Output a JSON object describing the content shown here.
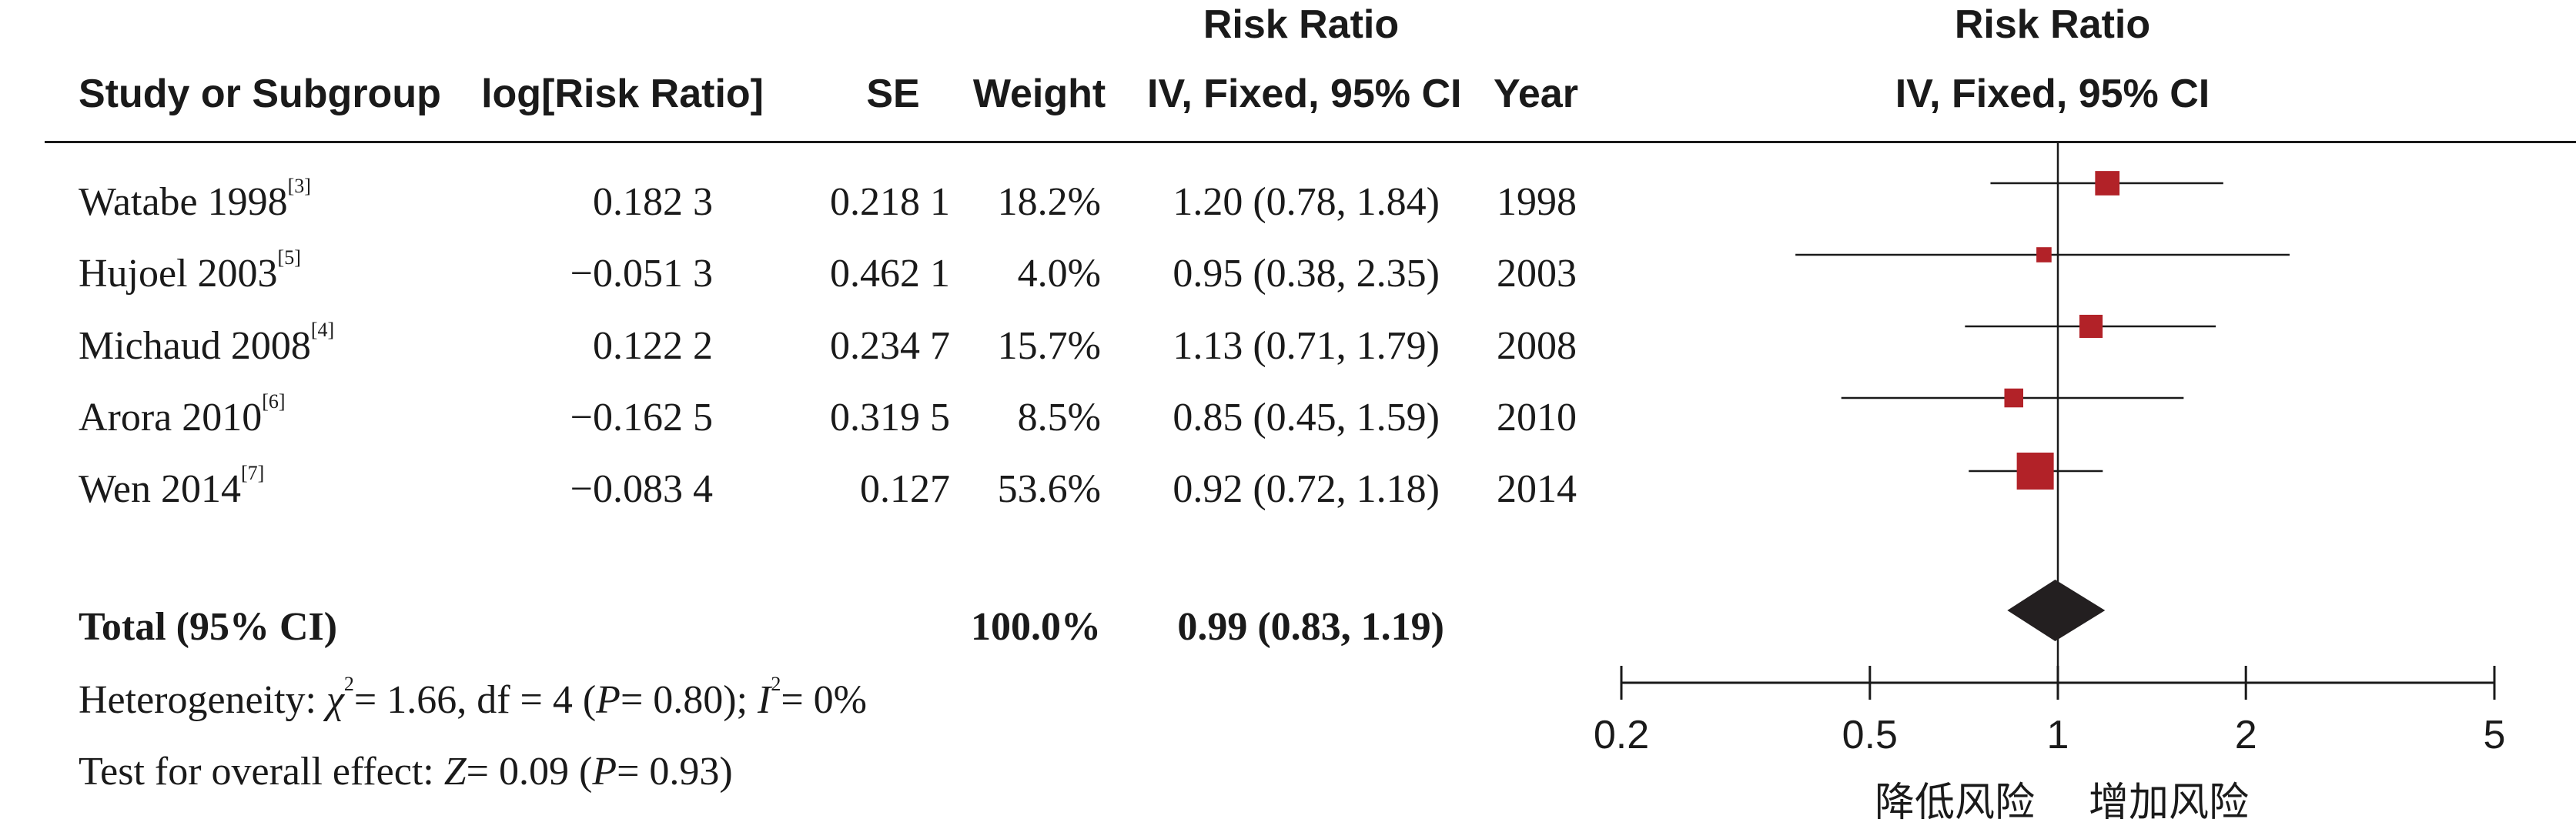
{
  "headers": {
    "study": "Study or Subgroup",
    "log_rr": "log[Risk Ratio]",
    "se": "SE",
    "weight": "Weight",
    "rr_title": "Risk Ratio",
    "rr_method": "IV, Fixed, 95% CI",
    "year": "Year",
    "plot_title": "Risk Ratio",
    "plot_method": "IV, Fixed, 95% CI"
  },
  "studies": [
    {
      "name": "Watabe 1998",
      "ref": "[3]",
      "log_rr": "0.182 3",
      "se": "0.218 1",
      "weight": "18.2%",
      "ci_text": "1.20 (0.78, 1.84)",
      "year": "1998"
    },
    {
      "name": "Hujoel 2003",
      "ref": "[5]",
      "log_rr": "−0.051 3",
      "se": "0.462 1",
      "weight": "4.0%",
      "ci_text": "0.95 (0.38, 2.35)",
      "year": "2003"
    },
    {
      "name": "Michaud 2008",
      "ref": "[4]",
      "log_rr": "0.122 2",
      "se": "0.234 7",
      "weight": "15.7%",
      "ci_text": "1.13 (0.71, 1.79)",
      "year": "2008"
    },
    {
      "name": "Arora 2010",
      "ref": "[6]",
      "log_rr": "−0.162 5",
      "se": "0.319 5",
      "weight": "8.5%",
      "ci_text": "0.85 (0.45, 1.59)",
      "year": "2010"
    },
    {
      "name": "Wen 2014",
      "ref": "[7]",
      "log_rr": "−0.083 4",
      "se": "0.127",
      "weight": "53.6%",
      "ci_text": "0.92 (0.72, 1.18)",
      "year": "2014"
    }
  ],
  "total": {
    "label": "Total (95% CI)",
    "weight": "100.0%",
    "ci_text": "0.99 (0.83, 1.19)"
  },
  "heterogeneity": {
    "prefix": "Heterogeneity: ",
    "chi_symbol": "χ",
    "chi_rest": "= 1.66, df = 4 (",
    "p_symbol": "P",
    "p_rest": "= 0.80); ",
    "i_symbol": "I",
    "i_rest": "= 0%"
  },
  "overall_effect": {
    "prefix": "Test for overall effect: ",
    "z_symbol": "Z",
    "z_rest": "= 0.09 (",
    "p_symbol": "P",
    "p_rest": "= 0.93)"
  },
  "chart_data": {
    "type": "scatter",
    "subtype": "forest",
    "scale": "log",
    "xlim": [
      0.2,
      5
    ],
    "ticks": [
      0.2,
      0.5,
      1,
      2,
      5
    ],
    "tick_labels": [
      "0.2",
      "0.5",
      "1",
      "2",
      "5"
    ],
    "reference_line": 1,
    "direction_labels": {
      "left": "降低风险",
      "right": "增加风险"
    },
    "marker_color": "#b22228",
    "diamond_color": "#231f20",
    "studies": [
      {
        "rr": 1.2,
        "lower": 0.78,
        "upper": 1.84,
        "weight": 18.2
      },
      {
        "rr": 0.95,
        "lower": 0.38,
        "upper": 2.35,
        "weight": 4.0
      },
      {
        "rr": 1.13,
        "lower": 0.71,
        "upper": 1.79,
        "weight": 15.7
      },
      {
        "rr": 0.85,
        "lower": 0.45,
        "upper": 1.59,
        "weight": 8.5
      },
      {
        "rr": 0.92,
        "lower": 0.72,
        "upper": 1.18,
        "weight": 53.6
      }
    ],
    "pooled": {
      "rr": 0.99,
      "lower": 0.83,
      "upper": 1.19
    }
  }
}
